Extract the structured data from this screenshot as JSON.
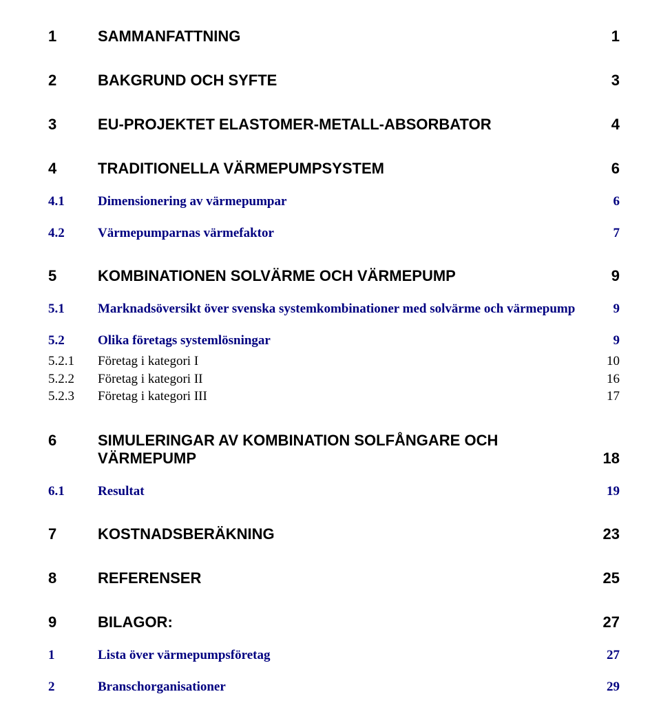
{
  "colors": {
    "text_black": "#000000",
    "text_blue": "#000080",
    "background": "#ffffff"
  },
  "fonts": {
    "lvl1_family": "Arial",
    "lvl1_size_pt": 17,
    "lvl1_weight": "bold",
    "lvl2_family": "Times New Roman",
    "lvl2_size_pt": 14,
    "lvl2_weight": "bold",
    "lvl3_family": "Times New Roman",
    "lvl3_size_pt": 14,
    "lvl3_weight": "normal"
  },
  "toc": {
    "e1": {
      "num": "1",
      "title": "SAMMANFATTNING",
      "page": "1"
    },
    "e2": {
      "num": "2",
      "title": "BAKGRUND OCH SYFTE",
      "page": "3"
    },
    "e3": {
      "num": "3",
      "title": "EU-PROJEKTET ELASTOMER-METALL-ABSORBATOR",
      "page": "4"
    },
    "e4": {
      "num": "4",
      "title": "TRADITIONELLA VÄRMEPUMPSYSTEM",
      "page": "6"
    },
    "e4_1": {
      "num": "4.1",
      "title": "Dimensionering av värmepumpar",
      "page": "6"
    },
    "e4_2": {
      "num": "4.2",
      "title": "Värmepumparnas värmefaktor",
      "page": "7"
    },
    "e5": {
      "num": "5",
      "title": "KOMBINATIONEN SOLVÄRME OCH VÄRMEPUMP",
      "page": "9"
    },
    "e5_1": {
      "num": "5.1",
      "title": "Marknadsöversikt över svenska systemkombinationer med solvärme och värmepump",
      "page": "9"
    },
    "e5_2": {
      "num": "5.2",
      "title": "Olika företags systemlösningar",
      "page": "9"
    },
    "e5_2_1": {
      "num": "5.2.1",
      "title": "Företag i kategori I",
      "page": "10"
    },
    "e5_2_2": {
      "num": "5.2.2",
      "title": "Företag i kategori II",
      "page": "16"
    },
    "e5_2_3": {
      "num": "5.2.3",
      "title": "Företag i kategori III",
      "page": "17"
    },
    "e6": {
      "num": "6",
      "title_l1": "SIMULERINGAR AV KOMBINATION SOLFÅNGARE OCH",
      "title_l2": "VÄRMEPUMP",
      "page": "18"
    },
    "e6_1": {
      "num": "6.1",
      "title": "Resultat",
      "page": "19"
    },
    "e7": {
      "num": "7",
      "title": "KOSTNADSBERÄKNING",
      "page": "23"
    },
    "e8": {
      "num": "8",
      "title": "REFERENSER",
      "page": "25"
    },
    "e9": {
      "num": "9",
      "title": "BILAGOR:",
      "page": "27"
    },
    "b1": {
      "num": "1",
      "title": "Lista över värmepumpsföretag",
      "page": "27"
    },
    "b2": {
      "num": "2",
      "title": "Branschorganisationer",
      "page": "29"
    }
  }
}
